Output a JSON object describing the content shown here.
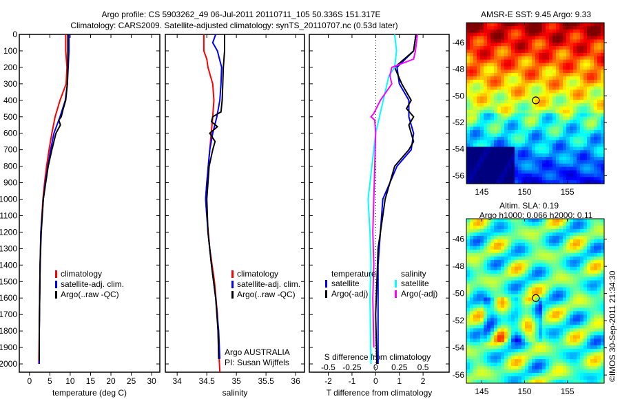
{
  "title_line1": "Argo profile: CS 5903262_49 06-Jul-2011 20110711_105 50.336S 151.317E",
  "title_line2": "Climatology: CARS2009. Satellite-adjusted climatology: synTS_20110707.nc (0.53d later)",
  "colors": {
    "climatology": "#ff0000",
    "satellite": "#0000ff",
    "argo": "#000000",
    "sal_satellite": "#00ffff",
    "sal_argo": "#ff00ff"
  },
  "chart_data": [
    {
      "type": "line",
      "xlabel": "temperature (deg C)",
      "ylabel": "",
      "ylim": [
        2050,
        0
      ],
      "xlim": [
        -2.5,
        32
      ],
      "xticks": [
        "0",
        "5",
        "10",
        "15",
        "20",
        "25",
        "30"
      ],
      "yticks": [
        "0",
        "100",
        "200",
        "300",
        "400",
        "500",
        "600",
        "700",
        "800",
        "900",
        "1000",
        "1100",
        "1200",
        "1300",
        "1400",
        "1500",
        "1600",
        "1700",
        "1800",
        "1900",
        "2000"
      ],
      "legend": [
        "climatology",
        "satellite-adj. clim.",
        "Argo(..raw -QC)"
      ],
      "series": [
        {
          "name": "climatology",
          "color": "#ff0000",
          "depth": [
            0,
            100,
            200,
            300,
            400,
            500,
            600,
            700,
            800,
            900,
            1000,
            1200,
            1400,
            1600,
            1800,
            2000
          ],
          "values": [
            8.9,
            8.9,
            9.2,
            9.0,
            7.5,
            6.3,
            5.5,
            4.8,
            4.2,
            3.7,
            3.3,
            2.8,
            2.6,
            2.5,
            2.4,
            2.3
          ]
        },
        {
          "name": "satellite-adj. clim.",
          "color": "#0000ff",
          "depth": [
            0,
            100,
            200,
            300,
            400,
            500,
            600,
            700,
            800,
            900,
            1000,
            1200,
            1400,
            1600,
            1800,
            2000
          ],
          "values": [
            9.7,
            9.7,
            9.5,
            9.3,
            8.8,
            7.5,
            6.0,
            5.2,
            4.5,
            3.9,
            3.4,
            2.8,
            2.6,
            2.5,
            2.4,
            2.4
          ]
        },
        {
          "name": "Argo(..raw -QC)",
          "color": "#000000",
          "depth": [
            0,
            100,
            200,
            300,
            400,
            450,
            500,
            520,
            550,
            600,
            700,
            800,
            900,
            1000,
            1200,
            1400,
            1600,
            1800,
            1980
          ],
          "values": [
            9.4,
            9.4,
            9.4,
            9.3,
            8.9,
            8.3,
            7.8,
            7.2,
            7.6,
            6.5,
            5.5,
            4.6,
            4.0,
            3.4,
            2.9,
            2.6,
            2.5,
            2.4,
            2.4
          ]
        }
      ]
    },
    {
      "type": "line",
      "xlabel": "salinity",
      "xlim": [
        33.8,
        36.15
      ],
      "xticks": [
        "34",
        "34.5",
        "35",
        "35.5",
        "36"
      ],
      "ylim": [
        2050,
        0
      ],
      "legend": [
        "climatology",
        "satellite-adj. clim.",
        "Argo(..raw -QC)"
      ],
      "annotation": [
        "Argo AUSTRALIA",
        "PI: Susan Wijffels"
      ],
      "series": [
        {
          "name": "climatology",
          "color": "#ff0000",
          "depth": [
            0,
            100,
            150,
            200,
            300,
            400,
            500,
            700,
            900,
            1000,
            1100,
            1300,
            1500,
            1700,
            1900,
            2050
          ],
          "values": [
            34.45,
            34.45,
            34.5,
            34.52,
            34.6,
            34.62,
            34.6,
            34.55,
            34.5,
            34.48,
            34.5,
            34.55,
            34.63,
            34.68,
            34.7,
            34.72
          ]
        },
        {
          "name": "satellite-adj. clim.",
          "color": "#0000ff",
          "depth": [
            0,
            50,
            100,
            200,
            300,
            400,
            500,
            600,
            700,
            900,
            1000,
            1200,
            1400,
            1600,
            1800,
            1970
          ],
          "values": [
            34.65,
            34.6,
            34.68,
            34.75,
            34.74,
            34.72,
            34.67,
            34.6,
            34.55,
            34.5,
            34.48,
            34.52,
            34.58,
            34.65,
            34.7,
            34.72
          ]
        },
        {
          "name": "Argo(..raw -QC)",
          "color": "#000000",
          "depth": [
            0,
            100,
            200,
            300,
            400,
            470,
            500,
            530,
            560,
            600,
            650,
            700,
            800,
            900,
            1000,
            1200,
            1400,
            1600,
            1800,
            1970
          ],
          "values": [
            34.8,
            34.8,
            34.78,
            34.77,
            34.76,
            34.74,
            34.6,
            34.58,
            34.68,
            34.55,
            34.64,
            34.6,
            34.54,
            34.52,
            34.5,
            34.52,
            34.58,
            34.65,
            34.69,
            34.7
          ]
        }
      ]
    },
    {
      "type": "line",
      "xlabel": "T difference from climatology",
      "xlabel2": "S difference from climatology",
      "xlim": [
        -2.8,
        3.1
      ],
      "xticks": [
        "-2",
        "-1",
        "0",
        "1",
        "2"
      ],
      "xticks2": [
        "-0.5",
        "-0.25",
        "0",
        "0.25",
        "0.5"
      ],
      "ylim": [
        2050,
        0
      ],
      "legend_headers": [
        "temperature",
        "salinity"
      ],
      "legend": [
        "satellite",
        "Argo(-adj)",
        "satellite",
        "Argo(-adj)"
      ],
      "series": [
        {
          "name": "T satellite",
          "color": "#0000ff",
          "unit": "T",
          "depth": [
            0,
            100,
            200,
            300,
            400,
            500,
            600,
            700,
            800,
            900,
            1000,
            1200,
            1400,
            1600,
            2000
          ],
          "values": [
            1.7,
            1.6,
            0.9,
            1.0,
            1.4,
            1.4,
            1.6,
            1.5,
            0.9,
            0.6,
            0.3,
            0.2,
            0.1,
            0.1,
            0.1
          ]
        },
        {
          "name": "T Argo(-adj)",
          "color": "#000000",
          "unit": "T",
          "depth": [
            0,
            100,
            200,
            300,
            400,
            450,
            500,
            550,
            600,
            650,
            700,
            800,
            900,
            1000,
            1100,
            1300,
            1500,
            1700,
            2000
          ],
          "values": [
            1.7,
            1.6,
            0.8,
            1.1,
            1.5,
            1.3,
            1.6,
            1.4,
            1.5,
            1.6,
            1.4,
            0.8,
            0.6,
            0.4,
            0.3,
            0.1,
            0.05,
            0,
            0.05
          ]
        },
        {
          "name": "S satellite",
          "color": "#00ffff",
          "unit": "S",
          "depth": [
            0,
            100,
            200,
            250,
            300,
            400,
            500,
            600,
            700,
            800,
            900,
            1000,
            1200,
            1400,
            1600,
            2000
          ],
          "values": [
            0.2,
            0.22,
            0.2,
            0.14,
            0.12,
            0.08,
            0.04,
            0.0,
            -0.02,
            -0.04,
            -0.06,
            -0.08,
            -0.06,
            -0.05,
            -0.06,
            -0.05
          ]
        },
        {
          "name": "S Argo(-adj)",
          "color": "#ff00ff",
          "unit": "S",
          "depth": [
            0,
            100,
            150,
            200,
            250,
            300,
            400,
            480,
            500,
            520,
            600,
            800,
            1000,
            1200,
            1400,
            1600,
            1900
          ],
          "values": [
            0.44,
            0.42,
            0.4,
            0.17,
            0.15,
            0.17,
            0.05,
            -0.02,
            -0.05,
            -0.01,
            0.0,
            -0.01,
            -0.02,
            -0.03,
            -0.02,
            -0.03,
            -0.02
          ]
        }
      ]
    }
  ],
  "maps": [
    {
      "title": "AMSR-E SST: 9.45 Argo: 9.33",
      "xticks": [
        "145",
        "150",
        "155"
      ],
      "yticks": [
        "-46",
        "-48",
        "-50",
        "-52",
        "-54",
        "-56"
      ]
    },
    {
      "title1": "Altim. SLA: 0.19",
      "title2": "Argo h1000: 0.066 h2000: 0.11",
      "xticks": [
        "145",
        "150",
        "155"
      ],
      "yticks": [
        "-46",
        "-48",
        "-50",
        "-52",
        "-54",
        "-56"
      ]
    }
  ],
  "credit": "©IMOS 30-Sep-2011 21:34:30"
}
